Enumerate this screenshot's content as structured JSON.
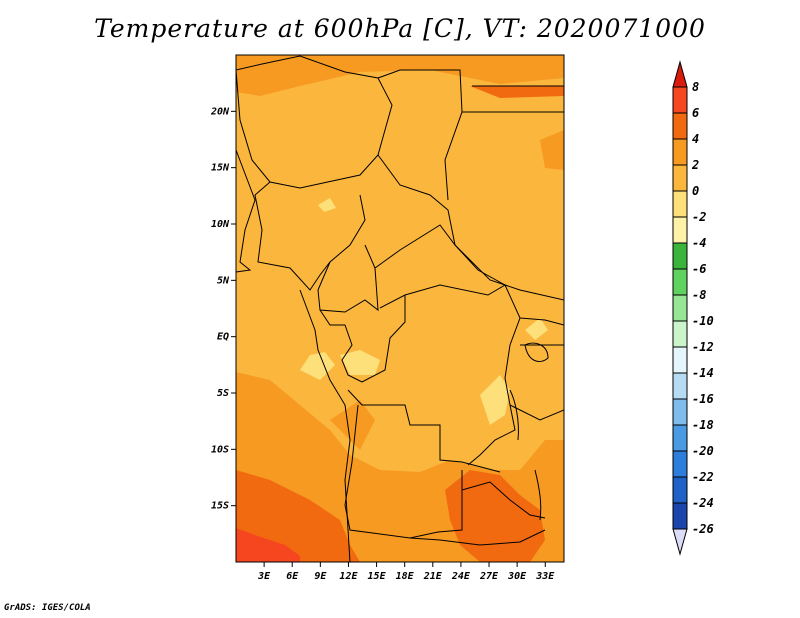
{
  "title": "Temperature at 600hPa [C], VT: 2020071000",
  "credit": "GrADS: IGES/COLA",
  "map": {
    "lon_range": [
      0,
      35
    ],
    "lat_range": [
      -20,
      25
    ],
    "lat_ticks": [
      {
        "label": "20N",
        "value": 20
      },
      {
        "label": "15N",
        "value": 15
      },
      {
        "label": "10N",
        "value": 10
      },
      {
        "label": "5N",
        "value": 5
      },
      {
        "label": "EQ",
        "value": 0
      },
      {
        "label": "5S",
        "value": -5
      },
      {
        "label": "10S",
        "value": -10
      },
      {
        "label": "15S",
        "value": -15
      }
    ],
    "lon_ticks": [
      {
        "label": "3E",
        "value": 3
      },
      {
        "label": "6E",
        "value": 6
      },
      {
        "label": "9E",
        "value": 9
      },
      {
        "label": "12E",
        "value": 12
      },
      {
        "label": "15E",
        "value": 15
      },
      {
        "label": "18E",
        "value": 18
      },
      {
        "label": "21E",
        "value": 21
      },
      {
        "label": "24E",
        "value": 24
      },
      {
        "label": "27E",
        "value": 27
      },
      {
        "label": "30E",
        "value": 30
      },
      {
        "label": "33E",
        "value": 33
      }
    ],
    "colors": {
      "base": "#fbb63e",
      "warm": "#f79a22",
      "hot": "#f26a10",
      "cool": "#fde07a",
      "border": "#000000"
    }
  },
  "colorbar": {
    "levels": [
      {
        "label": "8",
        "color": "#f5461f"
      },
      {
        "label": "6",
        "color": "#f26a10"
      },
      {
        "label": "4",
        "color": "#f79a22"
      },
      {
        "label": "2",
        "color": "#fbb63e"
      },
      {
        "label": "0",
        "color": "#fde07a"
      },
      {
        "label": "-2",
        "color": "#fef1a8"
      },
      {
        "label": "-4",
        "color": "#3bb43b"
      },
      {
        "label": "-6",
        "color": "#5fd25f"
      },
      {
        "label": "-8",
        "color": "#96e696"
      },
      {
        "label": "-10",
        "color": "#cbf4cb"
      },
      {
        "label": "-12",
        "color": "#e4f6fb"
      },
      {
        "label": "-14",
        "color": "#b6dcf3"
      },
      {
        "label": "-16",
        "color": "#7fbcec"
      },
      {
        "label": "-18",
        "color": "#4b9ae4"
      },
      {
        "label": "-20",
        "color": "#2d7ddb"
      },
      {
        "label": "-22",
        "color": "#1e62c8"
      },
      {
        "label": "-24",
        "color": "#1a45ac"
      },
      {
        "label": "-26",
        "color": "#0d1f7a"
      }
    ],
    "top_color": "#d91a0c",
    "bottom_color": "#dcdcf8"
  }
}
